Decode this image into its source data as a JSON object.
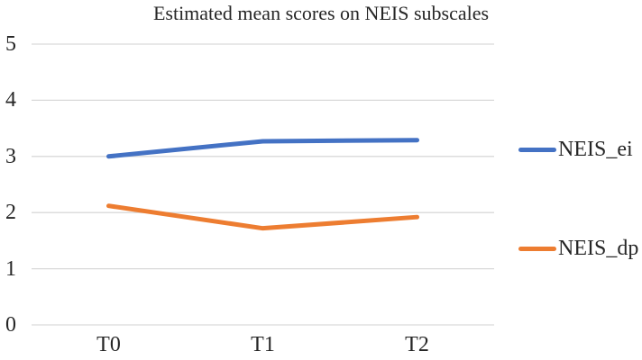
{
  "chart_data": {
    "type": "line",
    "title": "Estimated mean scores on NEIS subscales",
    "categories": [
      "T0",
      "T1",
      "T2"
    ],
    "series": [
      {
        "name": "NEIS_ei",
        "color": "#4472C4",
        "values": [
          3.0,
          3.27,
          3.29
        ]
      },
      {
        "name": "NEIS_dp",
        "color": "#ED7D31",
        "values": [
          2.12,
          1.72,
          1.92
        ]
      }
    ],
    "xlabel": "",
    "ylabel": "",
    "ylim": [
      0,
      5
    ],
    "yticks": [
      0,
      1,
      2,
      3,
      4,
      5
    ],
    "grid": "horizontal",
    "gridline_color": "#D9D9D9",
    "legend_position": "right",
    "text_color": "#262626",
    "background_color": "#FFFFFF",
    "line_width": 5
  }
}
